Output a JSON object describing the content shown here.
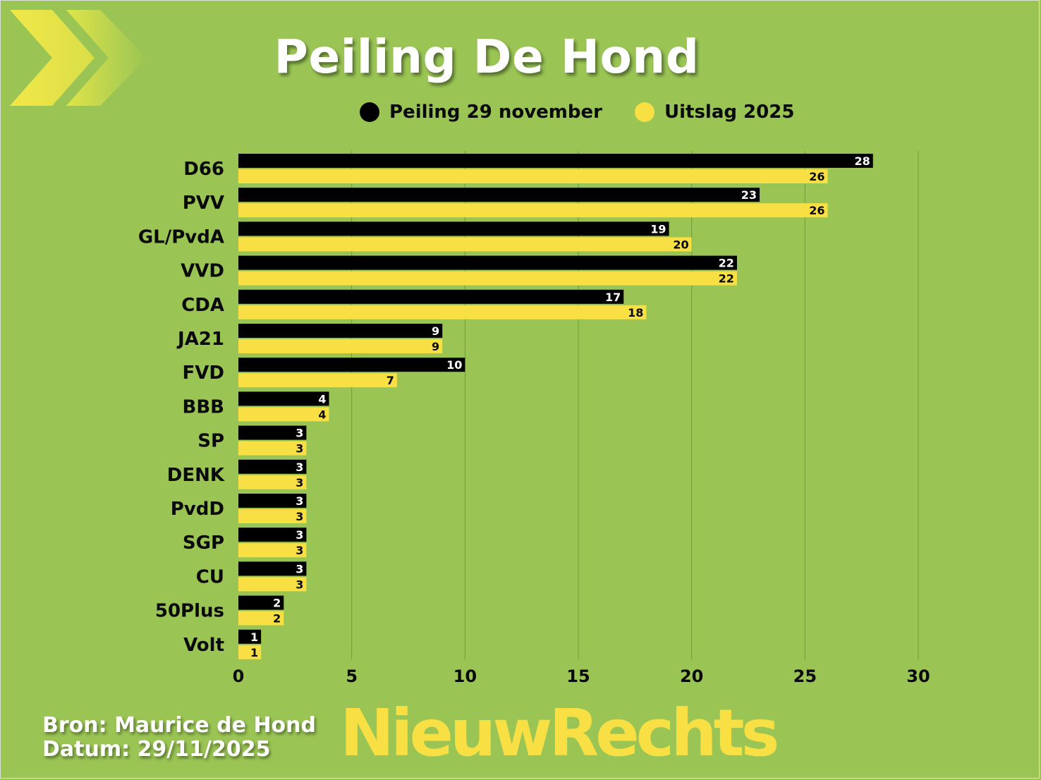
{
  "title": "Peiling De Hond",
  "legend": [
    {
      "label": "Peiling 29 november",
      "color": "#000000"
    },
    {
      "label": "Uitslag 2025",
      "color": "#f7df44"
    }
  ],
  "source": {
    "line1": "Bron: Maurice de Hond",
    "line2": "Datum: 29/11/2025"
  },
  "logo_text": "NieuwRechts",
  "colors": {
    "background": "#9ac554",
    "poll": "#000000",
    "result": "#f7df44",
    "gridline": "#6f9a3a",
    "chevron": "#e6e54a"
  },
  "chart_data": {
    "type": "bar",
    "orientation": "horizontal",
    "categories": [
      "D66",
      "PVV",
      "GL/PvdA",
      "VVD",
      "CDA",
      "JA21",
      "FVD",
      "BBB",
      "SP",
      "DENK",
      "PvdD",
      "SGP",
      "CU",
      "50Plus",
      "Volt"
    ],
    "series": [
      {
        "name": "Peiling 29 november",
        "values": [
          28,
          23,
          19,
          22,
          17,
          9,
          10,
          4,
          3,
          3,
          3,
          3,
          3,
          2,
          1
        ]
      },
      {
        "name": "Uitslag 2025",
        "values": [
          26,
          26,
          20,
          22,
          18,
          9,
          7,
          4,
          3,
          3,
          3,
          3,
          3,
          2,
          1
        ]
      }
    ],
    "xlim": [
      0,
      30
    ],
    "xticks": [
      0,
      5,
      10,
      15,
      20,
      25,
      30
    ],
    "grid": true,
    "legend_position": "top",
    "data_labels": true
  }
}
